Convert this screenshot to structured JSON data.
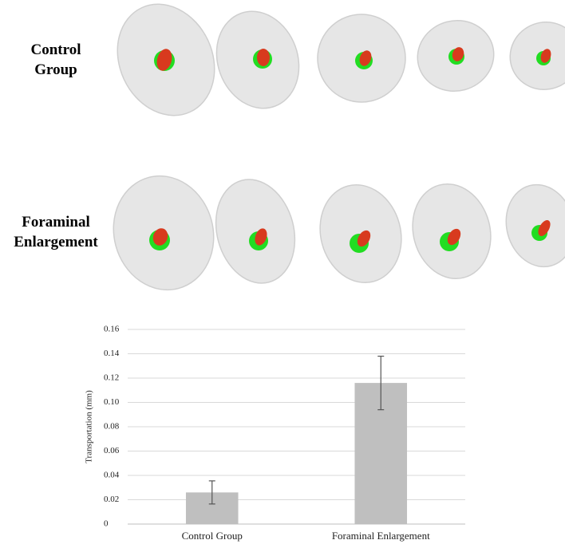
{
  "row_labels": [
    "Control Group",
    "Foraminal Enlargement"
  ],
  "chart_data": {
    "type": "bar",
    "y_label": "Transportation (mm)",
    "categories": [
      "Control Group",
      "Foraminal Enlargement"
    ],
    "values": [
      0.026,
      0.116
    ],
    "errors": [
      0.0095,
      0.022
    ],
    "color": "#bfbfbf",
    "ylim": [
      0,
      0.16
    ],
    "yticks": [
      0,
      0.02,
      0.04,
      0.06,
      0.08,
      {
        "value": 0.1,
        "label": "0.10"
      },
      0.12,
      0.14,
      0.16
    ],
    "grid": true
  }
}
